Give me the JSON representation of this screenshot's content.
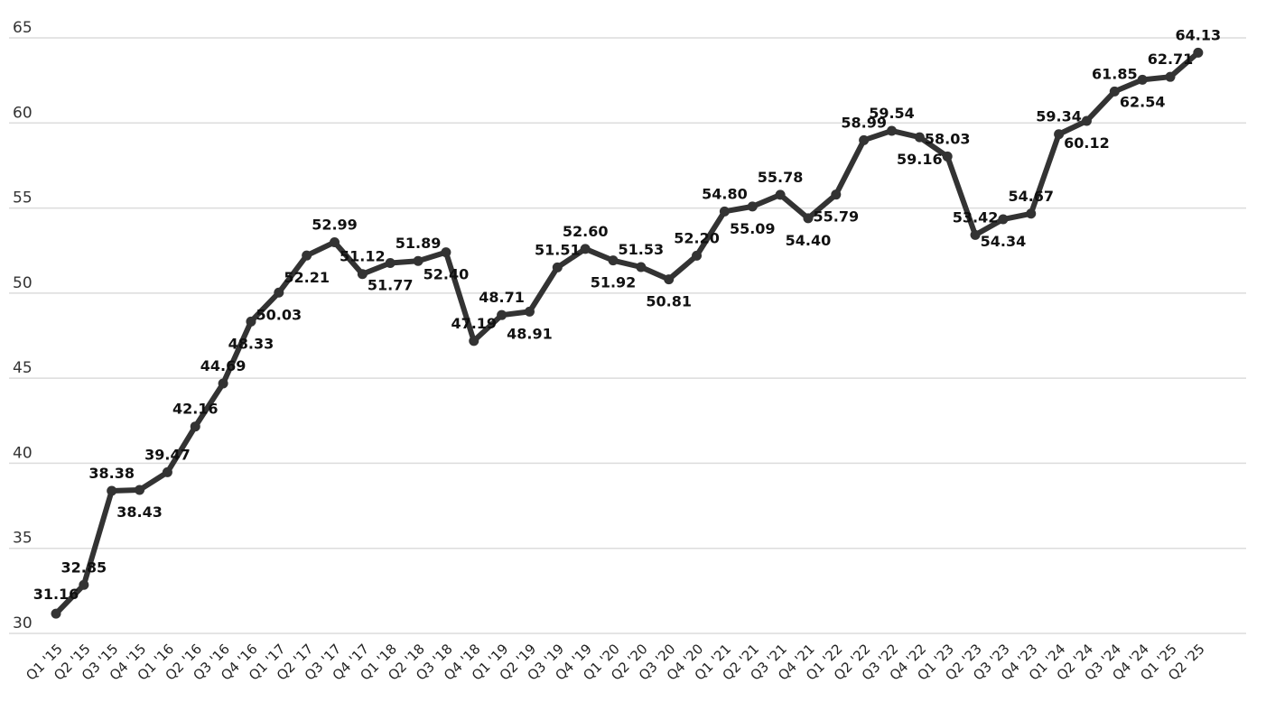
{
  "chart_data": {
    "type": "line",
    "title": "",
    "xlabel": "",
    "ylabel": "",
    "ylim": [
      30,
      65
    ],
    "yticks": [
      30,
      35,
      40,
      45,
      50,
      55,
      60,
      65
    ],
    "grid": true,
    "colors": {
      "line": "#333333",
      "grid": "#dcdcdc"
    },
    "categories": [
      "Q1 '15",
      "Q2 '15",
      "Q3 '15",
      "Q4 '15",
      "Q1 '16",
      "Q2 '16",
      "Q3 '16",
      "Q4 '16",
      "Q1 '17",
      "Q2 '17",
      "Q3 '17",
      "Q4 '17",
      "Q1 '18",
      "Q2 '18",
      "Q3 '18",
      "Q4 '18",
      "Q1 '19",
      "Q2 '19",
      "Q3 '19",
      "Q4 '19",
      "Q1 '20",
      "Q2 '20",
      "Q3 '20",
      "Q4 '20",
      "Q1 '21",
      "Q2 '21",
      "Q3 '21",
      "Q4 '21",
      "Q1 '22",
      "Q2 '22",
      "Q3 '22",
      "Q4 '22",
      "Q1 '23",
      "Q2 '23",
      "Q3 '23",
      "Q4 '23",
      "Q1 '24",
      "Q2 '24",
      "Q3 '24",
      "Q4 '24",
      "Q1 '25",
      "Q2 '25"
    ],
    "series": [
      {
        "values": [
          31.16,
          32.85,
          38.38,
          38.43,
          39.47,
          42.16,
          44.69,
          48.33,
          50.03,
          52.21,
          52.99,
          51.12,
          51.77,
          51.89,
          52.4,
          47.19,
          48.71,
          48.91,
          51.51,
          52.6,
          51.92,
          51.53,
          50.81,
          52.2,
          54.8,
          55.09,
          55.78,
          54.4,
          55.79,
          58.99,
          59.54,
          59.16,
          58.03,
          53.42,
          54.34,
          54.67,
          59.34,
          60.12,
          61.85,
          62.54,
          62.71,
          64.13
        ],
        "labels": [
          "31.16",
          "32.85",
          "38.38",
          "38.43",
          "39.47",
          "42.16",
          "44.69",
          "48.33",
          "50.03",
          "52.21",
          "52.99",
          "51.12",
          "51.77",
          "51.89",
          "52.40",
          "47.19",
          "48.71",
          "48.91",
          "51.51",
          "52.60",
          "51.92",
          "51.53",
          "50.81",
          "52.20",
          "54.80",
          "55.09",
          "55.78",
          "54.40",
          "55.79",
          "58.99",
          "59.54",
          "59.16",
          "58.03",
          "53.42",
          "54.34",
          "54.67",
          "59.34",
          "60.12",
          "61.85",
          "62.54",
          "62.71",
          "64.13"
        ]
      }
    ]
  }
}
